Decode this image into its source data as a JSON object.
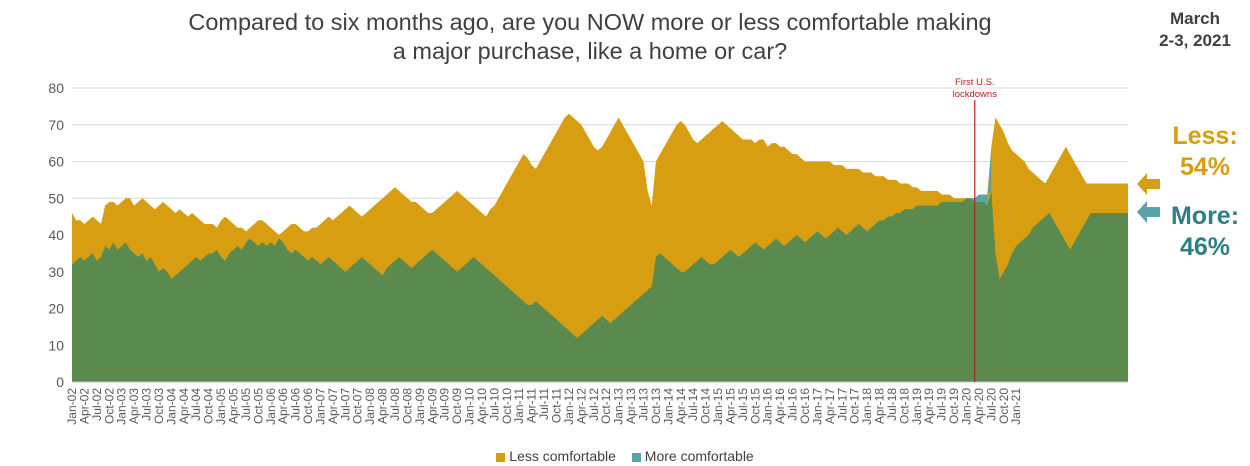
{
  "title_line1": "Compared to six months ago, are you NOW more or less comfortable making",
  "title_line2": "a major purchase, like a home or car?",
  "date_line1": "March",
  "date_line2": "2-3, 2021",
  "callouts": {
    "less_label": "Less:",
    "less_value": "54%",
    "more_label": "More:",
    "more_value": "46%"
  },
  "annotation": {
    "line1": "First U.S.",
    "line2": "lockdowns",
    "x_index": 218
  },
  "colors": {
    "less": "#D89E12",
    "more_fill": "#5A8A4E",
    "more_series": "#5BA3AA",
    "more_callout": "#2E7F82",
    "annotation": "#B22222",
    "grid": "#D9D9D9",
    "axis_text": "#595959"
  },
  "chart_data": {
    "type": "area",
    "title": "Compared to six months ago, are you NOW more or less comfortable making a major purchase, like a home or car?",
    "xlabel": "",
    "ylabel": "",
    "ylim": [
      0,
      80
    ],
    "yticks": [
      0,
      10,
      20,
      30,
      40,
      50,
      60,
      70,
      80
    ],
    "grid": true,
    "legend": "bottom",
    "start_month": "2002-01",
    "end_month": "2021-03",
    "tick_labels": [
      "Jan-02",
      "Apr-02",
      "Jul-02",
      "Oct-02",
      "Jan-03",
      "Apr-03",
      "Jul-03",
      "Oct-03",
      "Jan-04",
      "Apr-04",
      "Jul-04",
      "Oct-04",
      "Jan-05",
      "Apr-05",
      "Jul-05",
      "Oct-05",
      "Jan-06",
      "Apr-06",
      "Jul-06",
      "Oct-06",
      "Jan-07",
      "Apr-07",
      "Jul-07",
      "Oct-07",
      "Jan-08",
      "Apr-08",
      "Jul-08",
      "Oct-08",
      "Jan-09",
      "Apr-09",
      "Jul-09",
      "Oct-09",
      "Jan-10",
      "Apr-10",
      "Jul-10",
      "Oct-10",
      "Jan-11",
      "Apr-11",
      "Jul-11",
      "Oct-11",
      "Jan-12",
      "Apr-12",
      "Jul-12",
      "Oct-12",
      "Jan-13",
      "Apr-13",
      "Jul-13",
      "Oct-13",
      "Jan-14",
      "Apr-14",
      "Jul-14",
      "Oct-14",
      "Jan-15",
      "Apr-15",
      "Jul-15",
      "Oct-15",
      "Jan-16",
      "Apr-16",
      "Jul-16",
      "Oct-16",
      "Jan-17",
      "Apr-17",
      "Jul-17",
      "Oct-17",
      "Jan-18",
      "Apr-18",
      "Jul-18",
      "Oct-18",
      "Jan-19",
      "Apr-19",
      "Jul-19",
      "Oct-19",
      "Jan-20",
      "Apr-20",
      "Jul-20",
      "Oct-20",
      "Jan-21"
    ],
    "series": [
      {
        "name": "Less comfortable",
        "values": [
          46,
          44,
          44,
          43,
          44,
          45,
          44,
          43,
          48,
          49,
          49,
          48,
          49,
          50,
          50,
          48,
          49,
          50,
          49,
          48,
          47,
          48,
          49,
          48,
          47,
          46,
          47,
          46,
          45,
          46,
          45,
          44,
          43,
          43,
          43,
          42,
          44,
          45,
          44,
          43,
          42,
          42,
          41,
          42,
          43,
          44,
          44,
          43,
          42,
          41,
          40,
          41,
          42,
          43,
          43,
          42,
          41,
          41,
          42,
          42,
          43,
          44,
          45,
          44,
          45,
          46,
          47,
          48,
          47,
          46,
          45,
          46,
          47,
          48,
          49,
          50,
          51,
          52,
          53,
          52,
          51,
          50,
          49,
          49,
          48,
          47,
          46,
          46,
          47,
          48,
          49,
          50,
          51,
          52,
          51,
          50,
          49,
          48,
          47,
          46,
          45,
          47,
          48,
          50,
          52,
          54,
          56,
          58,
          60,
          62,
          61,
          59,
          58,
          60,
          62,
          64,
          66,
          68,
          70,
          72,
          73,
          72,
          71,
          70,
          68,
          66,
          64,
          63,
          64,
          66,
          68,
          70,
          72,
          70,
          68,
          66,
          64,
          62,
          60,
          52,
          48,
          60,
          62,
          64,
          66,
          68,
          70,
          71,
          70,
          68,
          66,
          65,
          66,
          67,
          68,
          69,
          70,
          71,
          70,
          69,
          68,
          67,
          66,
          66,
          66,
          65,
          66,
          66,
          64,
          65,
          65,
          64,
          64,
          63,
          62,
          62,
          61,
          60,
          60,
          60,
          60,
          60,
          60,
          60,
          59,
          59,
          59,
          58,
          58,
          58,
          58,
          57,
          57,
          57,
          56,
          56,
          56,
          55,
          55,
          55,
          54,
          54,
          54,
          53,
          53,
          52,
          52,
          52,
          52,
          52,
          51,
          51,
          51,
          50,
          50,
          50,
          50,
          50,
          49,
          49,
          49,
          48,
          64,
          72,
          70,
          68,
          65,
          63,
          62,
          61,
          60,
          58,
          57,
          56,
          55,
          54,
          56,
          58,
          60,
          62,
          64,
          62,
          60,
          58,
          56,
          54,
          54,
          54,
          54,
          54,
          54,
          54,
          54,
          54,
          54,
          54
        ]
      },
      {
        "name": "More comfortable",
        "values": [
          32,
          33,
          34,
          33,
          34,
          35,
          33,
          34,
          37,
          36,
          38,
          36,
          37,
          38,
          36,
          35,
          34,
          35,
          33,
          34,
          32,
          30,
          31,
          30,
          28,
          29,
          30,
          31,
          32,
          33,
          34,
          33,
          34,
          35,
          35,
          36,
          34,
          33,
          35,
          36,
          37,
          36,
          38,
          39,
          38,
          37,
          38,
          37,
          38,
          37,
          39,
          38,
          36,
          35,
          36,
          35,
          34,
          33,
          34,
          33,
          32,
          33,
          34,
          33,
          32,
          31,
          30,
          31,
          32,
          33,
          34,
          33,
          32,
          31,
          30,
          29,
          31,
          32,
          33,
          34,
          33,
          32,
          31,
          32,
          33,
          34,
          35,
          36,
          35,
          34,
          33,
          32,
          31,
          30,
          31,
          32,
          33,
          34,
          33,
          32,
          31,
          30,
          29,
          28,
          27,
          26,
          25,
          24,
          23,
          22,
          21,
          21,
          22,
          21,
          20,
          19,
          18,
          17,
          16,
          15,
          14,
          13,
          12,
          13,
          14,
          15,
          16,
          17,
          18,
          17,
          16,
          17,
          18,
          19,
          20,
          21,
          22,
          23,
          24,
          25,
          26,
          34,
          35,
          34,
          33,
          32,
          31,
          30,
          30,
          31,
          32,
          33,
          34,
          33,
          32,
          32,
          33,
          34,
          35,
          36,
          35,
          34,
          35,
          36,
          37,
          38,
          37,
          36,
          37,
          38,
          39,
          38,
          37,
          38,
          39,
          40,
          39,
          38,
          39,
          40,
          41,
          40,
          39,
          40,
          41,
          42,
          41,
          40,
          41,
          42,
          43,
          42,
          41,
          42,
          43,
          44,
          44,
          45,
          45,
          46,
          46,
          47,
          47,
          47,
          48,
          48,
          48,
          48,
          48,
          48,
          49,
          49,
          49,
          49,
          49,
          49,
          50,
          50,
          50,
          51,
          51,
          51,
          52,
          35,
          28,
          30,
          32,
          35,
          37,
          38,
          39,
          40,
          42,
          43,
          44,
          45,
          46,
          44,
          42,
          40,
          38,
          36,
          38,
          40,
          42,
          44,
          46,
          46,
          46,
          46,
          46,
          46,
          46,
          46,
          46,
          46,
          46
        ]
      }
    ]
  },
  "legend": {
    "less_label": "Less comfortable",
    "more_label": "More comfortable"
  }
}
